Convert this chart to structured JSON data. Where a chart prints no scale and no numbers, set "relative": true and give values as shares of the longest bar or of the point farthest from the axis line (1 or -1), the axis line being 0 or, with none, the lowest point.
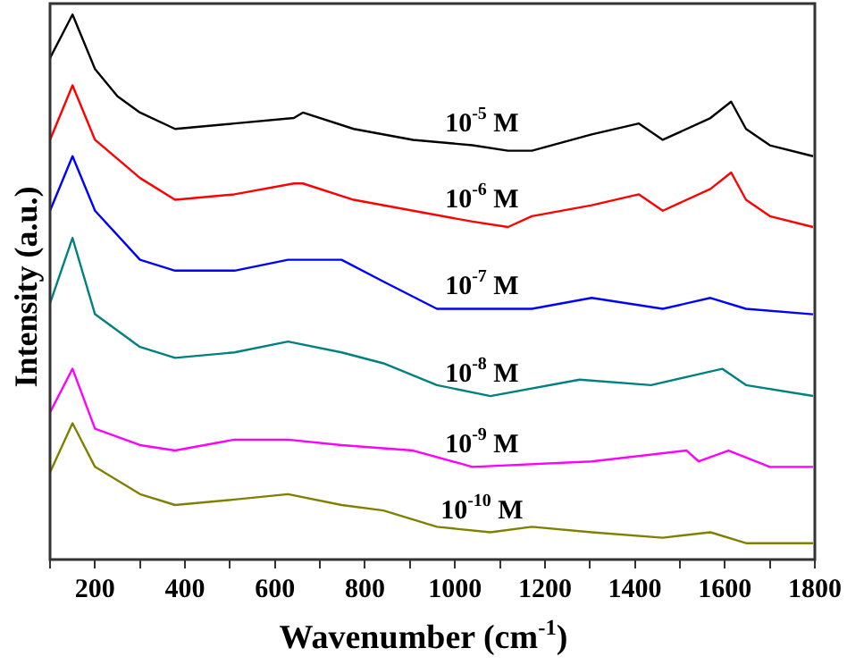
{
  "chart_data": {
    "type": "line",
    "relative": true,
    "xlabel": "Wavenumber (cm$^{-1}$)",
    "ylabel": "Intensity (a.u.)",
    "xlim": [
      100,
      1800
    ],
    "xticks": [
      {
        "value": 100,
        "label": null
      },
      200,
      {
        "value": 300,
        "label": null
      },
      400,
      {
        "value": 500,
        "label": null
      },
      600,
      {
        "value": 700,
        "label": null
      },
      800,
      {
        "value": 900,
        "label": null
      },
      1000,
      {
        "value": 1100,
        "label": null
      },
      1200,
      {
        "value": 1300,
        "label": null
      },
      1400,
      {
        "value": 1500,
        "label": null
      },
      1600,
      {
        "value": 1700,
        "label": null
      },
      1800
    ],
    "marker": "none",
    "line_style": "solid",
    "legend": false,
    "series": [
      {
        "name": "10$^{-5}$ M",
        "color": "#000000",
        "x": [
          100,
          150,
          200,
          250,
          300,
          378,
          510,
          642,
          662,
          775,
          907,
          1039,
          1118,
          1171,
          1304,
          1409,
          1462,
          1568,
          1614,
          1647,
          1700,
          1796
        ],
        "values": [
          0.92,
          1,
          0.9,
          0.85,
          0.82,
          0.79,
          0.8,
          0.81,
          0.82,
          0.79,
          0.77,
          0.76,
          0.75,
          0.75,
          0.78,
          0.8,
          0.77,
          0.81,
          0.84,
          0.79,
          0.76,
          0.74
        ]
      },
      {
        "name": "10$^{-6}$ M",
        "color": "#ff0000",
        "x": [
          100,
          150,
          200,
          300,
          378,
          510,
          642,
          662,
          775,
          907,
          1039,
          1118,
          1171,
          1304,
          1409,
          1462,
          1568,
          1614,
          1647,
          1700,
          1796
        ],
        "values": [
          0.77,
          0.87,
          0.77,
          0.7,
          0.66,
          0.67,
          0.69,
          0.69,
          0.66,
          0.64,
          0.62,
          0.61,
          0.63,
          0.65,
          0.67,
          0.64,
          0.68,
          0.71,
          0.66,
          0.63,
          0.61
        ]
      },
      {
        "name": "10$^{-7}$ M",
        "color": "#0000ff",
        "x": [
          100,
          150,
          200,
          300,
          378,
          510,
          629,
          748,
          841,
          960,
          1039,
          1171,
          1304,
          1462,
          1568,
          1647,
          1796
        ],
        "values": [
          0.64,
          0.74,
          0.64,
          0.55,
          0.53,
          0.53,
          0.55,
          0.55,
          0.51,
          0.46,
          0.46,
          0.46,
          0.48,
          0.46,
          0.48,
          0.46,
          0.45
        ]
      },
      {
        "name": "10$^{-8}$ M",
        "color": "#008080",
        "x": [
          100,
          150,
          200,
          300,
          378,
          510,
          629,
          748,
          841,
          960,
          1079,
          1277,
          1436,
          1542,
          1594,
          1647,
          1796
        ],
        "values": [
          0.47,
          0.59,
          0.45,
          0.39,
          0.37,
          0.38,
          0.4,
          0.38,
          0.36,
          0.32,
          0.3,
          0.33,
          0.32,
          0.34,
          0.35,
          0.32,
          0.3
        ]
      },
      {
        "name": "10$^{-9}$ M",
        "color": "#ff00ff",
        "x": [
          100,
          150,
          200,
          300,
          378,
          510,
          629,
          748,
          907,
          1039,
          1304,
          1515,
          1542,
          1608,
          1700,
          1796
        ],
        "values": [
          0.27,
          0.35,
          0.24,
          0.21,
          0.2,
          0.22,
          0.22,
          0.21,
          0.2,
          0.17,
          0.18,
          0.2,
          0.18,
          0.2,
          0.17,
          0.17
        ]
      },
      {
        "name": "10$^{-10}$ M",
        "color": "#808000",
        "x": [
          100,
          150,
          200,
          300,
          378,
          510,
          629,
          748,
          841,
          960,
          1079,
          1171,
          1304,
          1462,
          1568,
          1647,
          1796
        ],
        "values": [
          0.16,
          0.25,
          0.17,
          0.12,
          0.1,
          0.11,
          0.12,
          0.1,
          0.09,
          0.06,
          0.05,
          0.06,
          0.05,
          0.04,
          0.05,
          0.03,
          0.03
        ]
      }
    ]
  }
}
